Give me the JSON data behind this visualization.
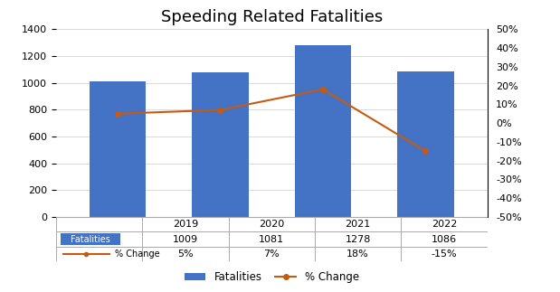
{
  "years": [
    "2019",
    "2020",
    "2021",
    "2022"
  ],
  "fatalities": [
    1009,
    1081,
    1278,
    1086
  ],
  "pct_change": [
    5,
    7,
    18,
    -15
  ],
  "bar_color": "#4472C4",
  "line_color": "#C55A11",
  "title": "Speeding Related Fatalities",
  "title_fontsize": 13,
  "left_ylim": [
    0,
    1400
  ],
  "left_yticks": [
    0,
    200,
    400,
    600,
    800,
    1000,
    1200,
    1400
  ],
  "right_ylim": [
    -50,
    50
  ],
  "right_yticks": [
    -50,
    -40,
    -30,
    -20,
    -10,
    0,
    10,
    20,
    30,
    40,
    50
  ],
  "table_fatalities_label": "Fatalities",
  "table_pct_label": "% Change",
  "table_fatalities_values": [
    "1009",
    "1081",
    "1278",
    "1086"
  ],
  "table_pct_values": [
    "5%",
    "7%",
    "18%",
    "-15%"
  ],
  "legend_fatalities": "Fatalities",
  "legend_pct": "% Change",
  "background_color": "#FFFFFF",
  "grid_color": "#D9D9D9"
}
